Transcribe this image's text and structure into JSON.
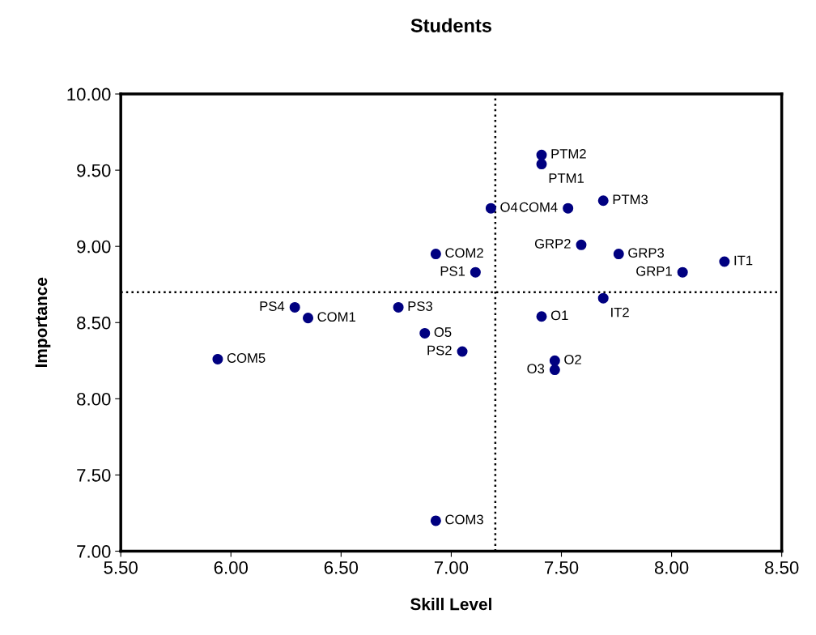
{
  "chart_data": {
    "type": "scatter",
    "title": "Students",
    "xlabel": "Skill Level",
    "ylabel": "Importance",
    "x": [
      7.41,
      7.41,
      7.69,
      7.53,
      7.18,
      7.59,
      7.76,
      8.05,
      8.24,
      6.93,
      7.11,
      7.69,
      7.41,
      6.29,
      6.35,
      6.76,
      6.88,
      7.05,
      7.47,
      7.47,
      5.94,
      6.93
    ],
    "series": [
      {
        "color": "#000080",
        "values": [
          9.6,
          9.54,
          9.3,
          9.25,
          9.25,
          9.01,
          8.95,
          8.83,
          8.9,
          8.95,
          8.83,
          8.66,
          8.54,
          8.6,
          8.53,
          8.6,
          8.43,
          8.31,
          8.25,
          8.19,
          8.26,
          7.2
        ],
        "value_labels": [
          "PTM2",
          "PTM1",
          "PTM3",
          "COM4",
          "O4",
          "GRP2",
          "GRP3",
          "GRP1",
          "IT1",
          "COM2",
          "PS1",
          "IT2",
          "O1",
          "PS4",
          "COM1",
          "PS3",
          "O5",
          "PS2",
          "O2",
          "O3",
          "COM5",
          "COM3"
        ]
      }
    ],
    "marker": "circle",
    "grid": false,
    "xlim": [
      5.5,
      8.5
    ],
    "xticks": [
      {
        "value": 5.5,
        "label": "5.50"
      },
      {
        "value": 6,
        "label": "6.00"
      },
      {
        "value": 6.5,
        "label": "6.50"
      },
      {
        "value": 7,
        "label": "7.00"
      },
      {
        "value": 7.5,
        "label": "7.50"
      },
      {
        "value": 8,
        "label": "8.00"
      },
      {
        "value": 8.5,
        "label": "8.50"
      }
    ],
    "ylim": [
      7,
      10
    ],
    "yticks": [
      {
        "value": 7,
        "label": "7.00"
      },
      {
        "value": 7.5,
        "label": "7.50"
      },
      {
        "value": 8,
        "label": "8.00"
      },
      {
        "value": 8.5,
        "label": "8.50"
      },
      {
        "value": 9,
        "label": "9.00"
      },
      {
        "value": 9.5,
        "label": "9.50"
      },
      {
        "value": 10,
        "label": "10.00"
      }
    ],
    "ref_lines": [
      {
        "axis": "x",
        "value": 7.2,
        "line_style": "dotted",
        "color": "#000000"
      },
      {
        "axis": "y",
        "value": 8.7,
        "line_style": "dotted",
        "color": "#000000"
      }
    ]
  }
}
